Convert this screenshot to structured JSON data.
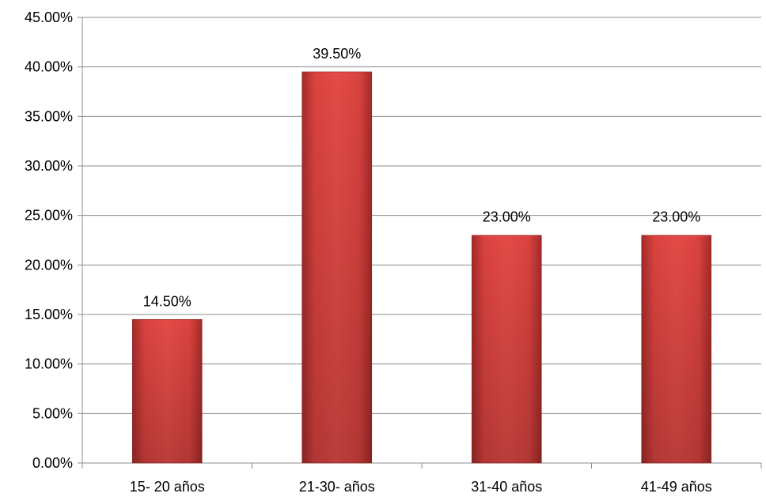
{
  "chart_data": {
    "type": "bar",
    "title": "",
    "xlabel": "",
    "ylabel": "",
    "categories": [
      "15- 20 años",
      "21-30- años",
      "31-40 años",
      "41-49 años"
    ],
    "values": [
      14.5,
      39.5,
      23.0,
      23.0
    ],
    "data_labels": [
      "14.50%",
      "39.50%",
      "23.00%",
      "23.00%"
    ],
    "ylim": [
      0,
      45
    ],
    "ytick_step": 5,
    "ytick_labels": [
      "0.00%",
      "5.00%",
      "10.00%",
      "15.00%",
      "20.00%",
      "25.00%",
      "30.00%",
      "35.00%",
      "40.00%",
      "45.00%"
    ],
    "grid": true,
    "legend": "none",
    "bar_color": "#d9423f",
    "bar_color_dark": "#9e2a28",
    "grid_color": "#8c8c8c"
  }
}
